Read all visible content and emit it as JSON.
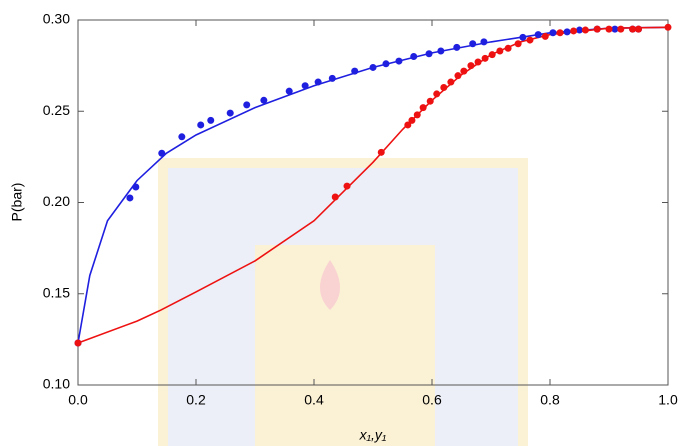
{
  "chart_data": {
    "type": "scatter",
    "xlabel": "x₁,y₁",
    "ylabel": "P(bar)",
    "xlim": [
      0,
      1
    ],
    "ylim": [
      0.1,
      0.3
    ],
    "xticks": [
      {
        "value": 0,
        "label": "0.0"
      },
      0.2,
      0.4,
      0.6,
      0.8,
      {
        "value": 1,
        "label": "1.0"
      }
    ],
    "yticks": [
      {
        "value": 0.1,
        "label": "0.10"
      },
      0.15,
      {
        "value": 0.2,
        "label": "0.20"
      },
      0.25,
      {
        "value": 0.3,
        "label": "0.30"
      }
    ],
    "series": [
      {
        "style": "points",
        "color": "#1f1fe0",
        "x": [
          0,
          0.088,
          0.098,
          0.142,
          0.176,
          0.208,
          0.225,
          0.258,
          0.286,
          0.315,
          0.358,
          0.385,
          0.407,
          0.431,
          0.469,
          0.5,
          0.522,
          0.544,
          0.569,
          0.595,
          0.615,
          0.642,
          0.669,
          0.688,
          0.754,
          0.78,
          0.805,
          0.829,
          0.85,
          0.88,
          0.91,
          0.94,
          0.95
        ],
        "values": [
          0.123,
          0.2025,
          0.2085,
          0.227,
          0.236,
          0.2425,
          0.245,
          0.249,
          0.2535,
          0.256,
          0.261,
          0.264,
          0.266,
          0.268,
          0.272,
          0.274,
          0.276,
          0.2775,
          0.28,
          0.2815,
          0.283,
          0.285,
          0.287,
          0.288,
          0.2905,
          0.292,
          0.293,
          0.2935,
          0.2945,
          0.295,
          0.295,
          0.295,
          0.295
        ]
      },
      {
        "style": "points",
        "color": "#ee1111",
        "x": [
          0,
          0.436,
          0.456,
          0.514,
          0.559,
          0.566,
          0.575,
          0.585,
          0.597,
          0.608,
          0.62,
          0.632,
          0.644,
          0.654,
          0.666,
          0.678,
          0.69,
          0.702,
          0.715,
          0.729,
          0.746,
          0.766,
          0.792,
          0.817,
          0.84,
          0.86,
          0.88,
          0.9,
          0.92,
          0.94,
          0.95,
          1.0
        ],
        "values": [
          0.123,
          0.203,
          0.209,
          0.2275,
          0.2425,
          0.245,
          0.248,
          0.252,
          0.2555,
          0.2595,
          0.263,
          0.266,
          0.2695,
          0.272,
          0.275,
          0.277,
          0.279,
          0.281,
          0.283,
          0.2845,
          0.287,
          0.289,
          0.291,
          0.293,
          0.294,
          0.2945,
          0.295,
          0.295,
          0.295,
          0.295,
          0.295,
          0.296
        ]
      },
      {
        "style": "line",
        "color": "#1f1fe0",
        "x": [
          0,
          0.02,
          0.05,
          0.1,
          0.15,
          0.2,
          0.3,
          0.4,
          0.5,
          0.6,
          0.7,
          0.8,
          0.9,
          1.0
        ],
        "values": [
          0.123,
          0.16,
          0.19,
          0.212,
          0.227,
          0.237,
          0.252,
          0.264,
          0.274,
          0.282,
          0.288,
          0.293,
          0.2955,
          0.296
        ]
      },
      {
        "style": "line",
        "color": "#ee1111",
        "x": [
          0,
          0.1,
          0.14,
          0.2,
          0.3,
          0.4,
          0.5,
          0.55,
          0.6,
          0.65,
          0.7,
          0.75,
          0.8,
          0.9,
          1.0
        ],
        "values": [
          0.123,
          0.135,
          0.141,
          0.151,
          0.168,
          0.19,
          0.222,
          0.24,
          0.256,
          0.27,
          0.281,
          0.288,
          0.292,
          0.2955,
          0.296
        ]
      }
    ]
  }
}
